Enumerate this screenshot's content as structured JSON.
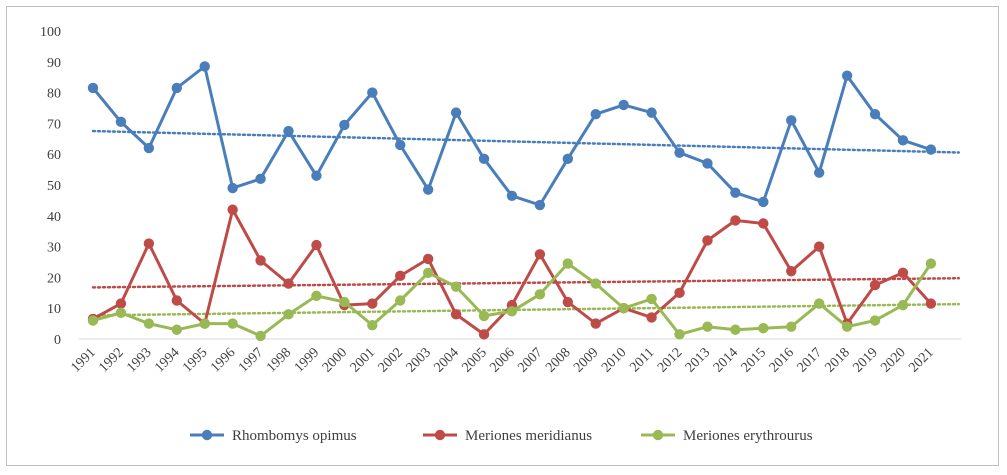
{
  "chart_data": {
    "type": "line",
    "title": "",
    "xlabel": "",
    "ylabel": "",
    "x": [
      "1991",
      "1992",
      "1993",
      "1994",
      "1995",
      "1996",
      "1997",
      "1998",
      "1999",
      "2000",
      "2001",
      "2002",
      "2003",
      "2004",
      "2005",
      "2006",
      "2007",
      "2008",
      "2009",
      "2010",
      "2011",
      "2012",
      "2013",
      "2014",
      "2015",
      "2016",
      "2017",
      "2018",
      "2019",
      "2020",
      "2021"
    ],
    "ylim": [
      0,
      100
    ],
    "yticks": [
      "0",
      "10",
      "20",
      "30",
      "40",
      "50",
      "60",
      "70",
      "80",
      "90",
      "100"
    ],
    "grid": false,
    "legend_position": "bottom",
    "series": [
      {
        "name": "Rhombomys opimus",
        "color": "#4a7ebb",
        "trendline": "linear",
        "values": [
          81.5,
          70.5,
          62,
          81.5,
          88.5,
          49,
          52,
          67.5,
          53,
          69.5,
          80,
          63,
          48.5,
          73.5,
          58.5,
          46.5,
          43.5,
          58.5,
          73,
          76,
          73.5,
          60.5,
          57,
          47.5,
          44.5,
          71,
          54,
          85.5,
          73,
          64.5,
          61.5
        ]
      },
      {
        "name": "Meriones meridianus",
        "color": "#be4b48",
        "trendline": "linear",
        "values": [
          6.5,
          11.5,
          31,
          12.5,
          5,
          42,
          25.5,
          18,
          30.5,
          11,
          11.5,
          20.5,
          26,
          8,
          1.5,
          11,
          27.5,
          12,
          5,
          10,
          7,
          15,
          32,
          38.5,
          37.5,
          22,
          30,
          5,
          17.5,
          21.5,
          11.5
        ]
      },
      {
        "name": "Meriones erythrourus",
        "color": "#98b954",
        "trendline": "linear",
        "values": [
          6,
          8.5,
          5,
          3,
          5,
          5,
          1,
          8,
          14,
          12,
          4.5,
          12.5,
          21.5,
          17,
          7.5,
          9,
          14.5,
          24.5,
          18,
          10,
          13,
          1.5,
          4,
          3,
          3.5,
          4,
          11.5,
          4,
          6,
          11,
          24.5
        ]
      }
    ]
  }
}
